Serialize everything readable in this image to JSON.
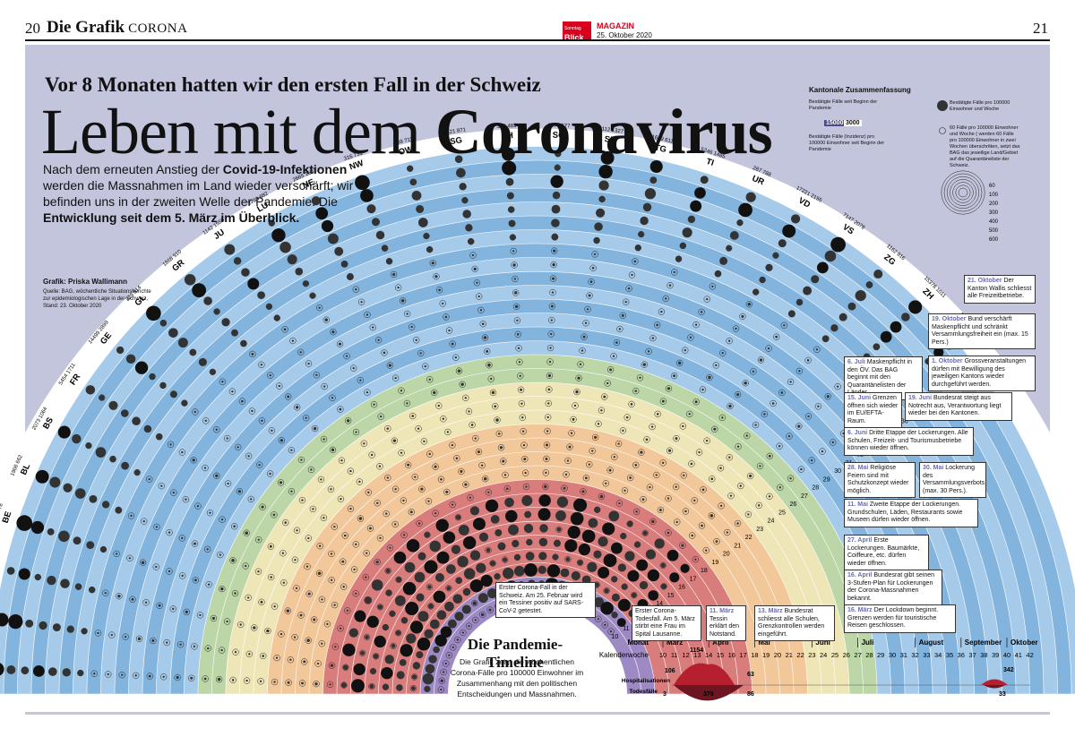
{
  "masthead": {
    "page_left": "20",
    "section": "Die Grafik",
    "section_sub": "CORONA",
    "logo_top": "Sonntag",
    "logo_main": "Blick",
    "magazine": "MAGAZIN",
    "date": "25. Oktober 2020",
    "page_right": "21"
  },
  "header": {
    "kicker": "Vor 8 Monaten hatten wir den ersten Fall in der Schweiz",
    "title_light": "Leben mit dem",
    "title_bold": "Coronavirus"
  },
  "intro": {
    "p1": "Nach dem erneuten Anstieg der ",
    "b1": "Covid-19-Infektionen",
    "p2": " werden die Massnahmen im Land wieder verschärft; wir befinden uns in der zweiten Welle der Pandemie. Die ",
    "b2": "Entwicklung seit dem 5. März im Überblick."
  },
  "credit": {
    "line1": "Grafik: Priska Wallimann",
    "line2": "Quelle: BAG, wöchentliche Situationsberichte zur epidemiologischen Lage in der Schweiz, Stand: 23. Oktober 2020"
  },
  "legend": {
    "title": "Kantonale Zusammenfassung",
    "cum": "Bestätigte Fälle seit Beginn der Pandemie",
    "incidence": "Bestätigte Fälle (Inzidenz) pro 100000 Einwohner seit Beginn der Pandemie",
    "example_cases": "15000",
    "example_incidence": "3000",
    "dot_filled": "Bestätigte Fälle pro 100000 Einwohner und Woche",
    "dot_open": "60 Fälle pro 100000 Einwohner und Woche ( werden 60 Fälle pro 100000 Einwohner in zwei Wochen überschritten, setzt das BAG das jeweilige Land/Gebiet auf die Quarantäneliste der Schweiz.",
    "scale": [
      "60",
      "100",
      "200",
      "300",
      "400",
      "500",
      "600"
    ]
  },
  "cantons": [
    {
      "code": "AG",
      "cases": "4738",
      "inc": "699"
    },
    {
      "code": "AI",
      "cases": "207",
      "inc": "1282"
    },
    {
      "code": "AR",
      "cases": "463",
      "inc": "838"
    },
    {
      "code": "BE",
      "cases": "8053",
      "inc": "778"
    },
    {
      "code": "BL",
      "cases": "1906",
      "inc": "662"
    },
    {
      "code": "BS",
      "cases": "2073",
      "inc": "1064"
    },
    {
      "code": "FR",
      "cases": "5454",
      "inc": "1711"
    },
    {
      "code": "GE",
      "cases": "14499",
      "inc": "2899"
    },
    {
      "code": "GL",
      "cases": "329",
      "inc": "814"
    },
    {
      "code": "GR",
      "cases": "1868",
      "inc": "910"
    },
    {
      "code": "JU",
      "cases": "1142",
      "inc": "1556"
    },
    {
      "code": "LU",
      "cases": "2793",
      "inc": "682"
    },
    {
      "code": "NE",
      "cases": "2665",
      "inc": "1507"
    },
    {
      "code": "NW",
      "cases": "316",
      "inc": "731"
    },
    {
      "code": "OW",
      "cases": "269",
      "inc": "711"
    },
    {
      "code": "SG",
      "cases": "4421",
      "inc": "871"
    },
    {
      "code": "SH",
      "cases": "396",
      "inc": "483"
    },
    {
      "code": "SO",
      "cases": "1577",
      "inc": "577"
    },
    {
      "code": "SZ",
      "cases": "2112",
      "inc": "1327"
    },
    {
      "code": "TG",
      "cases": "1689",
      "inc": "611"
    },
    {
      "code": "TI",
      "cases": "5246",
      "inc": "1485"
    },
    {
      "code": "UR",
      "cases": "287",
      "inc": "788"
    },
    {
      "code": "VD",
      "cases": "17221",
      "inc": "2155"
    },
    {
      "code": "VS",
      "cases": "7147",
      "inc": "2078"
    },
    {
      "code": "ZG",
      "cases": "1162",
      "inc": "916"
    },
    {
      "code": "ZH",
      "cases": "15378",
      "inc": "1011"
    },
    {
      "code": "Schweiz",
      "cases": "103121",
      "inc": "1209"
    }
  ],
  "weeks": [
    "10",
    "11",
    "12",
    "13",
    "14",
    "15",
    "16",
    "17",
    "18",
    "19",
    "20",
    "21",
    "22",
    "23",
    "24",
    "25",
    "26",
    "27",
    "28",
    "29",
    "30",
    "31",
    "32",
    "33",
    "34",
    "35",
    "36",
    "37",
    "38",
    "39",
    "40",
    "41",
    "42"
  ],
  "kw_label": "KW",
  "timeline": {
    "title": "Die Pandemie-Timeline",
    "subtitle": "Die Grafik zeigt die wöchentlichen Corona-Fälle pro 100000 Einwohner im Zusammenhang mit den politischen Entscheidungen und Massnahmen.",
    "monat_label": "Monat",
    "kw_label": "Kalenderwoche",
    "months": [
      "März",
      "April",
      "Mai",
      "Juni",
      "Juli",
      "August",
      "September",
      "Oktober"
    ],
    "hosp_label": "Hospitalisationen",
    "death_label": "Todesfälle",
    "hosp_values": [
      "106",
      "1154",
      "63",
      "342"
    ],
    "death_values": [
      "3",
      "376",
      "86",
      "33"
    ]
  },
  "events": [
    {
      "id": "e1",
      "date": "21. Oktober",
      "text": "Der Kanton Wallis schliesst alle Freizeitbetriebe."
    },
    {
      "id": "e2",
      "date": "19. Oktober",
      "text": "Bund verschärft Maskenpflicht und schränkt Versammlungsfreiheit ein (max. 15 Pers.)"
    },
    {
      "id": "e3",
      "date": "1. Oktober",
      "text": "Grossveranstaltungen dürfen mit Bewilligung des jeweiligen Kantons wieder durchgeführt werden."
    },
    {
      "id": "e4",
      "date": "6. Juli",
      "text": "Maskenpflicht in den ÖV. Das BAG beginnt mit den Quarantänelisten der Länder."
    },
    {
      "id": "e5",
      "date": "15. Juni",
      "text": "Grenzen öffnen sich wieder im EU/EFTA-Raum."
    },
    {
      "id": "e6",
      "date": "19. Juni",
      "text": "Bundesrat steigt aus Notrecht aus, Verantwortung liegt wieder bei den Kantonen."
    },
    {
      "id": "e7",
      "date": "6. Juni",
      "text": "Dritte Etappe der Lockerungen. Alle Schulen, Freizeit- und Tourismusbetriebe können wieder öffnen."
    },
    {
      "id": "e8",
      "date": "28. Mai",
      "text": "Religiöse Feiern sind mit Schutzkonzept wieder möglich."
    },
    {
      "id": "e9",
      "date": "30. Mai",
      "text": "Lockerung des Versammlungsverbots (max. 30 Pers.)."
    },
    {
      "id": "e10",
      "date": "11. Mai",
      "text": "Zweite Etappe der Lockerungen. Grundschulen, Läden, Restaurants sowie Museen dürfen wieder öffnen."
    },
    {
      "id": "e11",
      "date": "27. April",
      "text": "Erste Lockerungen. Baumärkte, Coiffeure, etc. dürfen wieder öffnen."
    },
    {
      "id": "e12",
      "date": "16. April",
      "text": "Bundesrat gibt seinen 3-Stufen-Plan für Lockerungen der Corona-Massnahmen bekannt."
    },
    {
      "id": "e13",
      "date": "16. März",
      "text": "Der Lockdown beginnt. Grenzen werden für touristische Reisen geschlossen."
    },
    {
      "id": "e14",
      "date": "13. März",
      "text": "Bundesrat schliesst alle Schulen, Grenzkontrollen werden eingeführt."
    },
    {
      "id": "e15",
      "date": "11. März",
      "text": "Tessin erklärt den Notstand."
    },
    {
      "id": "e16",
      "date": "",
      "text": "Erster Corona-Todesfall. Am 5. März stirbt eine Frau im Spital Lausanne."
    },
    {
      "id": "e17",
      "date": "",
      "text": "Erster Corona-Fall in der Schweiz. Am 25. Februar wird ein Tessiner positiv auf SARS-CoV-2 getestet."
    }
  ],
  "colors": {
    "panel": "#c2c5dc",
    "purple": "#9d8ac4",
    "red": "#d97c7c",
    "orange": "#f2c79a",
    "cream": "#efe6b8",
    "green": "#bcd6a8",
    "blue": "#82b4de",
    "blue_light": "#a6cbea",
    "accent": "#6a6dab",
    "dark": "#222222"
  }
}
